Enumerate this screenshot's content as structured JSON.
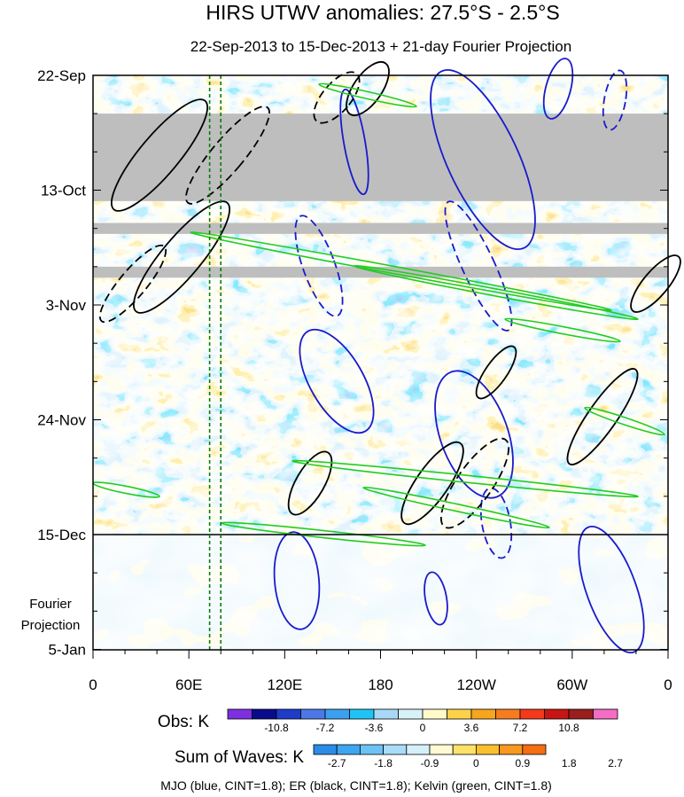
{
  "chart_data": {
    "type": "heatmap",
    "title": "HIRS UTWV anomalies: 27.5°S - 2.5°S",
    "subtitle": "22-Sep-2013 to 15-Dec-2013 + 21-day Fourier Projection",
    "xlabel": "",
    "ylabel": "",
    "x_ticks": [
      "0",
      "60E",
      "120E",
      "180",
      "120W",
      "60W",
      "0"
    ],
    "y_ticks": [
      "22-Sep",
      "13-Oct",
      "3-Nov",
      "24-Nov",
      "15-Dec",
      "5-Jan"
    ],
    "projection_label_line1": "Fourier",
    "projection_label_line2": "Projection",
    "obs_colorbar": {
      "label": "Obs: K",
      "ticks": [
        "-10.8",
        "-7.2",
        "-3.6",
        "0",
        "3.6",
        "7.2",
        "10.8"
      ],
      "colors": [
        "#7e2fe0",
        "#0a0a8c",
        "#1e3cc8",
        "#4b78e6",
        "#3ca0f0",
        "#1ec4f4",
        "#a8d8f6",
        "#d8f2fa",
        "#fffacc",
        "#fcd24a",
        "#f8a51e",
        "#f67c1e",
        "#f43a1a",
        "#c81414",
        "#9a1e1e",
        "#f46cc4"
      ]
    },
    "waves_colorbar": {
      "label": "Sum of Waves: K",
      "ticks": [
        "-2.7",
        "-1.8",
        "-0.9",
        "0",
        "0.9",
        "1.8",
        "2.7"
      ],
      "colors": [
        "#2a8ce8",
        "#3ca6f0",
        "#6cc2f4",
        "#a8dcf8",
        "#d6f0fa",
        "#fffad2",
        "#fde26a",
        "#fbc02e",
        "#f8981e",
        "#f46e14"
      ]
    },
    "footer": "MJO (blue, CINT=1.8); ER (black, CINT=1.8); Kelvin (green, CINT=1.8)",
    "series": [
      {
        "name": "MJO",
        "color": "#1a1acc"
      },
      {
        "name": "ER",
        "color": "#000000"
      },
      {
        "name": "Kelvin",
        "color": "#22cc22"
      }
    ],
    "reference_lines": {
      "date": "15-Dec",
      "longitudes_deg_east": [
        73,
        80
      ]
    },
    "missing_data_periods": [
      [
        "29-Sep",
        "15-Oct"
      ],
      [
        "19-Oct",
        "21-Oct"
      ],
      [
        "27-Oct",
        "29-Oct"
      ]
    ],
    "observed_period": [
      "22-Sep-2013",
      "15-Dec-2013"
    ],
    "projection_days": 21
  }
}
